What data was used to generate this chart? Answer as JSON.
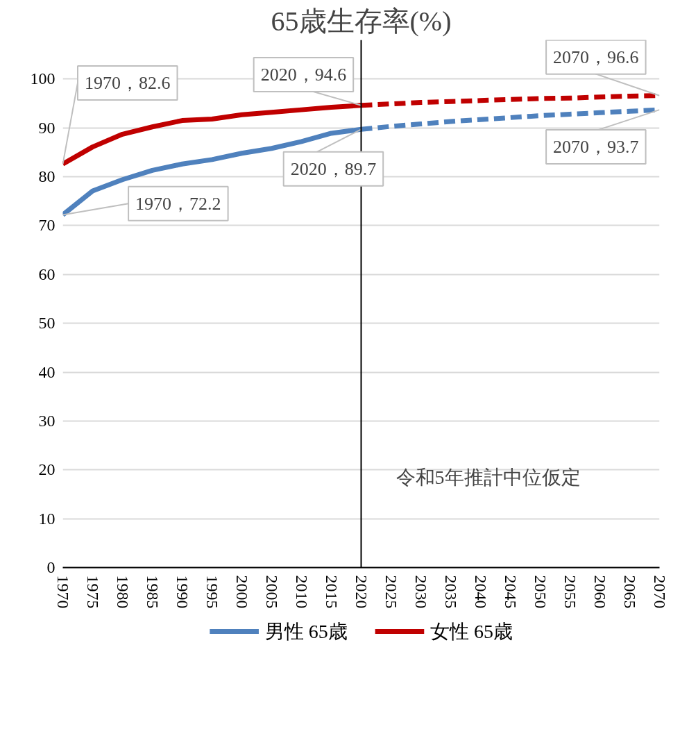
{
  "chart_data": {
    "type": "line",
    "title": "65歳生存率(%)",
    "xlim": [
      1970,
      2070
    ],
    "xticks": [
      1970,
      1975,
      1980,
      1985,
      1990,
      1995,
      2000,
      2005,
      2010,
      2015,
      2020,
      2025,
      2030,
      2035,
      2040,
      2045,
      2050,
      2055,
      2060,
      2065,
      2070
    ],
    "ylim": [
      0,
      108
    ],
    "yticks": [
      0,
      10,
      20,
      30,
      40,
      50,
      60,
      70,
      80,
      90,
      100
    ],
    "grid": "y",
    "legend": "bottom",
    "series": [
      {
        "name": "男性 65歳",
        "color": "#4f81bd",
        "line_style": "solid",
        "x": [
          1970,
          1975,
          1980,
          1985,
          1990,
          1995,
          2000,
          2005,
          2010,
          2015,
          2020
        ],
        "values": [
          72.2,
          77.1,
          79.4,
          81.3,
          82.6,
          83.5,
          84.8,
          85.8,
          87.2,
          88.9,
          89.7
        ]
      },
      {
        "name": "女性 65歳",
        "color": "#c00000",
        "line_style": "solid",
        "x": [
          1970,
          1975,
          1980,
          1985,
          1990,
          1995,
          2000,
          2005,
          2010,
          2015,
          2020
        ],
        "values": [
          82.6,
          86.1,
          88.7,
          90.2,
          91.5,
          91.8,
          92.7,
          93.2,
          93.7,
          94.2,
          94.6
        ]
      },
      {
        "color": "#4f81bd",
        "line_style": "dashed",
        "x": [
          2020,
          2025,
          2030,
          2035,
          2040,
          2045,
          2050,
          2055,
          2060,
          2065,
          2070
        ],
        "values": [
          89.7,
          90.3,
          90.8,
          91.3,
          91.7,
          92.1,
          92.5,
          92.8,
          93.1,
          93.4,
          93.7
        ]
      },
      {
        "color": "#c00000",
        "line_style": "dashed",
        "x": [
          2020,
          2025,
          2030,
          2035,
          2040,
          2045,
          2050,
          2055,
          2060,
          2065,
          2070
        ],
        "values": [
          94.6,
          94.9,
          95.2,
          95.4,
          95.6,
          95.8,
          96.0,
          96.1,
          96.3,
          96.5,
          96.6
        ]
      }
    ],
    "ref_lines": [
      {
        "axis": "x",
        "value": 2020,
        "color": "#000000"
      }
    ],
    "annotations": [
      {
        "text": "1970，82.6",
        "x": 1970,
        "y": 82.6
      },
      {
        "text": "1970，72.2",
        "x": 1970,
        "y": 72.2
      },
      {
        "text": "2020，94.6",
        "x": 2020,
        "y": 94.6
      },
      {
        "text": "2020，89.7",
        "x": 2020,
        "y": 89.7
      },
      {
        "text": "2070，96.6",
        "x": 2070,
        "y": 96.6
      },
      {
        "text": "2070，93.7",
        "x": 2070,
        "y": 93.7
      },
      "令和5年推計中位仮定"
    ]
  }
}
